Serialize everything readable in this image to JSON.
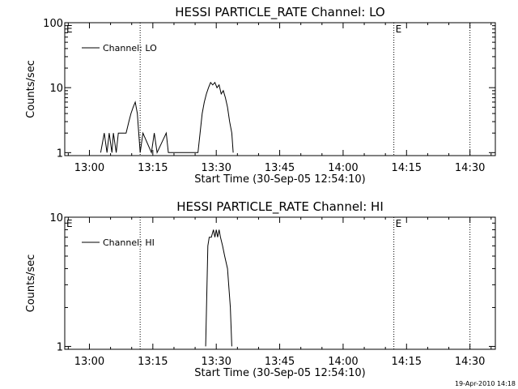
{
  "chart_data": [
    {
      "type": "line",
      "title": "HESSI PARTICLE_RATE Channel: LO",
      "xlabel": "Start Time (30-Sep-05 12:54:10)",
      "ylabel": "Counts/sec",
      "y_scale": "log",
      "ylim": [
        0.9,
        100
      ],
      "xlim": [
        "12:54:10",
        "14:36:00"
      ],
      "x_ticks": [
        "13:00",
        "13:15",
        "13:30",
        "13:45",
        "14:00",
        "14:15",
        "14:30"
      ],
      "y_ticks": [
        "1",
        "10",
        "100"
      ],
      "legend": {
        "placement": "top-left",
        "entries": [
          "Channel: LO"
        ]
      },
      "event_markers": [
        {
          "time": "13:12:00",
          "label": ""
        },
        {
          "time": "14:12:00",
          "label": "E"
        },
        {
          "time": "14:30:00",
          "label": ""
        }
      ],
      "corner_label": "E",
      "series": [
        {
          "name": "Channel: LO",
          "x": [
            "13:02:40",
            "13:03:30",
            "13:04:10",
            "13:04:40",
            "13:05:20",
            "13:05:40",
            "13:06:20",
            "13:06:50",
            "13:07:10",
            "13:07:40",
            "13:08:40",
            "13:09:20",
            "13:09:50",
            "13:10:20",
            "13:10:50",
            "13:11:20",
            "13:11:40",
            "13:12:00",
            "13:12:40",
            "13:14:40",
            "13:15:20",
            "13:16:00",
            "13:18:10",
            "13:18:40",
            "13:19:10",
            "13:25:40",
            "13:26:10",
            "13:26:40",
            "13:27:10",
            "13:27:40",
            "13:28:10",
            "13:28:40",
            "13:29:10",
            "13:29:40",
            "13:30:10",
            "13:30:40",
            "13:31:10",
            "13:31:40",
            "13:32:10",
            "13:32:40",
            "13:33:10",
            "13:33:40",
            "13:34:00"
          ],
          "y": [
            1,
            2,
            1,
            2,
            1,
            2,
            1,
            2,
            2,
            2,
            2,
            3,
            4,
            5,
            6,
            4,
            2,
            1,
            2,
            1,
            2,
            1,
            2,
            1,
            1,
            1,
            2,
            4,
            6,
            8,
            10,
            12,
            11,
            12,
            10,
            11,
            8,
            9,
            7,
            5,
            3,
            2,
            1
          ]
        }
      ]
    },
    {
      "type": "line",
      "title": "HESSI PARTICLE_RATE Channel: HI",
      "xlabel": "Start Time (30-Sep-05 12:54:10)",
      "ylabel": "Counts/sec",
      "y_scale": "log",
      "ylim": [
        0.95,
        10
      ],
      "xlim": [
        "12:54:10",
        "14:36:00"
      ],
      "x_ticks": [
        "13:00",
        "13:15",
        "13:30",
        "13:45",
        "14:00",
        "14:15",
        "14:30"
      ],
      "y_ticks": [
        "1",
        "10"
      ],
      "legend": {
        "placement": "top-left",
        "entries": [
          "Channel: HI"
        ]
      },
      "event_markers": [
        {
          "time": "13:12:00",
          "label": ""
        },
        {
          "time": "14:12:00",
          "label": "E"
        },
        {
          "time": "14:30:00",
          "label": ""
        }
      ],
      "corner_label": "E",
      "series": [
        {
          "name": "Channel: HI",
          "x": [
            "13:27:30",
            "13:28:00",
            "13:28:20",
            "13:28:50",
            "13:29:20",
            "13:29:40",
            "13:30:00",
            "13:30:20",
            "13:30:40",
            "13:31:00",
            "13:31:30",
            "13:32:00",
            "13:32:40",
            "13:33:20",
            "13:33:40"
          ],
          "y": [
            1,
            6,
            7,
            7,
            8,
            7,
            8,
            7,
            8,
            7,
            6,
            5,
            4,
            2,
            1
          ]
        }
      ]
    }
  ],
  "footer": {
    "timestamp": "19-Apr-2010 14:18"
  }
}
